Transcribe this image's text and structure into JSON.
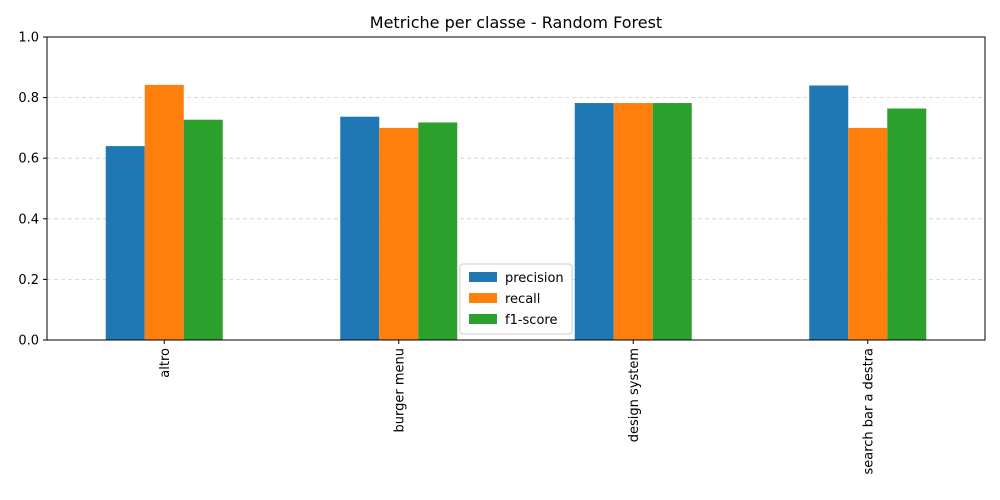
{
  "chart_data": {
    "type": "bar",
    "title": "Metriche per classe - Random Forest",
    "xlabel": "",
    "ylabel": "",
    "categories": [
      "altro",
      "burger menu",
      "design system",
      "search bar a destra"
    ],
    "series": [
      {
        "name": "precision",
        "color": "#1f77b4",
        "values": [
          0.64,
          0.737,
          0.782,
          0.84
        ]
      },
      {
        "name": "recall",
        "color": "#ff7f0e",
        "values": [
          0.842,
          0.7,
          0.782,
          0.7
        ]
      },
      {
        "name": "f1-score",
        "color": "#2ca02c",
        "values": [
          0.727,
          0.718,
          0.782,
          0.764
        ]
      }
    ],
    "ylim": [
      0,
      1.0
    ],
    "yticks": [
      0.0,
      0.2,
      0.4,
      0.6,
      0.8,
      1.0
    ],
    "ytick_labels": [
      "0.0",
      "0.2",
      "0.4",
      "0.6",
      "0.8",
      "1.0"
    ],
    "grid": "y-dashed",
    "legend_position": "lower-center"
  }
}
